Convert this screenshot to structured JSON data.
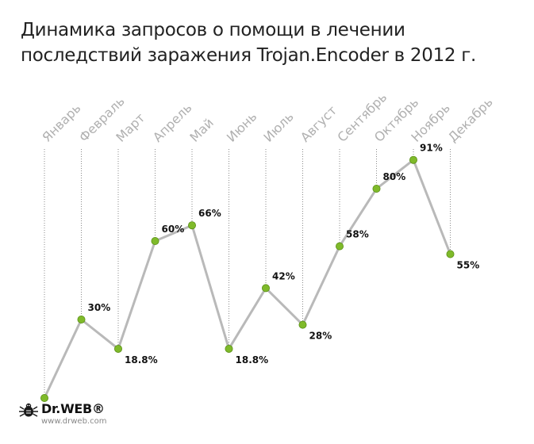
{
  "title": {
    "line1": "Динамика запросов о помощи в лечении",
    "line2": "последствий заражения Trojan.Encoder в 2012 г."
  },
  "logo": {
    "brand": "Dr.WEB®",
    "url": "www.drweb.com"
  },
  "colors": {
    "line": "#b9b9b9",
    "point": "#7fba2a",
    "point_stroke": "#5a8f17",
    "month_label": "#b0b0b0",
    "guide": "#8a8a8a",
    "value_label": "#111111"
  },
  "chart_data": {
    "type": "line",
    "categories": [
      "Январь",
      "Февраль",
      "Март",
      "Апрель",
      "Май",
      "Июнь",
      "Июль",
      "Август",
      "Сентябрь",
      "Октябрь",
      "Ноябрь",
      "Декабрь"
    ],
    "values": [
      null,
      30,
      18.8,
      60,
      66,
      18.8,
      42,
      28,
      58,
      80,
      91,
      55
    ],
    "value_labels": [
      "",
      "30%",
      "18.8%",
      "60%",
      "66%",
      "18.8%",
      "42%",
      "28%",
      "58%",
      "80%",
      "91%",
      "55%"
    ],
    "first_point_shown_without_label": true,
    "unit": "%",
    "ylim": [
      0,
      100
    ],
    "grid": false,
    "legend": "none"
  }
}
